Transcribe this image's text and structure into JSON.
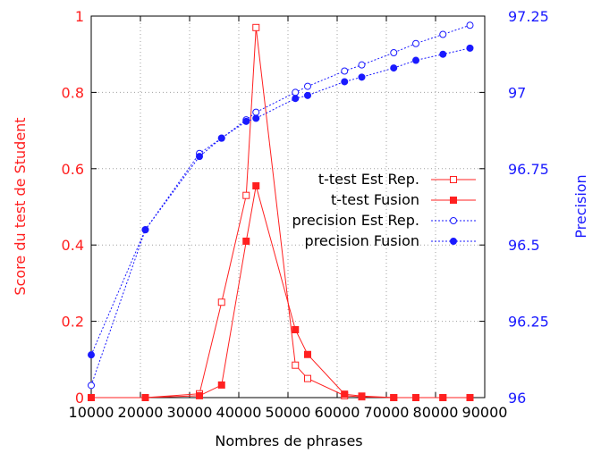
{
  "chart_data": {
    "type": "line",
    "xlabel": "Nombres de phrases",
    "ylabel_left": "Score du test de Student",
    "ylabel_right": "Precision",
    "xlim": [
      10000,
      90000
    ],
    "ylim_left": [
      0,
      1
    ],
    "ylim_right": [
      96,
      97.25
    ],
    "x_ticks": [
      "10000",
      "20000",
      "30000",
      "40000",
      "50000",
      "60000",
      "70000",
      "80000",
      "90000"
    ],
    "y_left_ticks": [
      "0",
      "0.2",
      "0.4",
      "0.6",
      "0.8",
      "1"
    ],
    "y_right_ticks": [
      "96",
      "96.25",
      "96.5",
      "96.75",
      "97",
      "97.25"
    ],
    "grid": true,
    "legend_position": "center-right",
    "colors": {
      "ttest": "#ff2020",
      "precision": "#1a1aff"
    },
    "series": [
      {
        "name": "t-test Est Rep.",
        "axis": "left",
        "marker": "open-square",
        "line": "solid",
        "x": [
          10000,
          21000,
          32000,
          36500,
          41500,
          43500,
          51500,
          54000,
          61500,
          65000,
          71500,
          76000,
          81500,
          87000
        ],
        "y": [
          0.0,
          0.0,
          0.01,
          0.25,
          0.53,
          0.97,
          0.085,
          0.05,
          0.005,
          0.002,
          0.0,
          0.0,
          0.0,
          0.0
        ]
      },
      {
        "name": "t-test Fusion",
        "axis": "left",
        "marker": "filled-square",
        "line": "solid",
        "x": [
          10000,
          21000,
          32000,
          36500,
          41500,
          43500,
          51500,
          54000,
          61500,
          65000,
          71500,
          76000,
          81500,
          87000
        ],
        "y": [
          0.0,
          0.0,
          0.005,
          0.033,
          0.41,
          0.555,
          0.178,
          0.113,
          0.009,
          0.004,
          0.0,
          0.0,
          0.0,
          0.0
        ]
      },
      {
        "name": "precision Est Rep.",
        "axis": "right",
        "marker": "open-circle",
        "line": "dotted",
        "x": [
          10000,
          21000,
          32000,
          36500,
          41500,
          43500,
          51500,
          54000,
          61500,
          65000,
          71500,
          76000,
          81500,
          87000
        ],
        "y": [
          96.04,
          96.55,
          96.8,
          96.85,
          96.91,
          96.935,
          97.0,
          97.02,
          97.07,
          97.09,
          97.13,
          97.16,
          97.19,
          97.22
        ]
      },
      {
        "name": "precision Fusion",
        "axis": "right",
        "marker": "filled-circle",
        "line": "dotted",
        "x": [
          10000,
          21000,
          32000,
          36500,
          41500,
          43500,
          51500,
          54000,
          61500,
          65000,
          71500,
          76000,
          81500,
          87000
        ],
        "y": [
          96.14,
          96.55,
          96.79,
          96.85,
          96.905,
          96.915,
          96.98,
          96.99,
          97.035,
          97.05,
          97.08,
          97.105,
          97.125,
          97.145
        ]
      }
    ]
  }
}
